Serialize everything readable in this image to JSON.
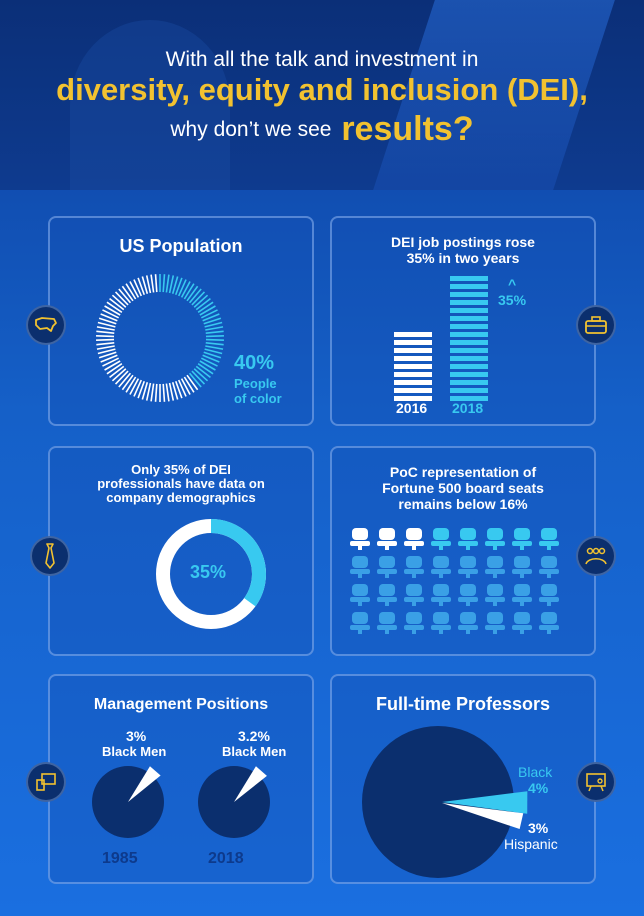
{
  "header": {
    "line1": "With all the talk and investment in",
    "line2": "diversity, equity and inclusion (DEI),",
    "line3": "why don’t we see",
    "line3_big": "results?"
  },
  "population": {
    "title": "US Population",
    "percent": "40%",
    "caption_line1": "People",
    "caption_line2": "of color",
    "value": 40
  },
  "postings": {
    "title_line1": "DEI job postings rose",
    "title_line2": "35% in two years",
    "caret": "^",
    "increase": "35%",
    "year1": "2016",
    "year2": "2018"
  },
  "demographics": {
    "title_line1": "Only 35% of DEI",
    "title_line2": "professionals have data on",
    "title_line3": "company demographics",
    "percent": "35%",
    "value": 35
  },
  "board": {
    "title_line1": "PoC representation of",
    "title_line2": "Fortune 500 board seats",
    "title_line3": "remains below 16%"
  },
  "management": {
    "title": "Management Positions",
    "left_percent": "3%",
    "left_label": "Black Men",
    "left_year": "1985",
    "left_value": 3,
    "right_percent": "3.2%",
    "right_label": "Black Men",
    "right_year": "2018",
    "right_value": 3.2
  },
  "professors": {
    "title": "Full-time Professors",
    "black_label": "Black",
    "black_percent": "4%",
    "hispanic_percent": "3%",
    "hispanic_label": "Hispanic",
    "black_value": 4,
    "hispanic_value": 3
  },
  "colors": {
    "accent_yellow": "#f2c230",
    "accent_cyan": "#38c9f0",
    "navy": "#0b2f6e"
  },
  "icons": [
    "usa-map-icon",
    "briefcase-icon",
    "necktie-icon",
    "people-group-icon",
    "presentation-icon",
    "lecture-board-icon"
  ]
}
